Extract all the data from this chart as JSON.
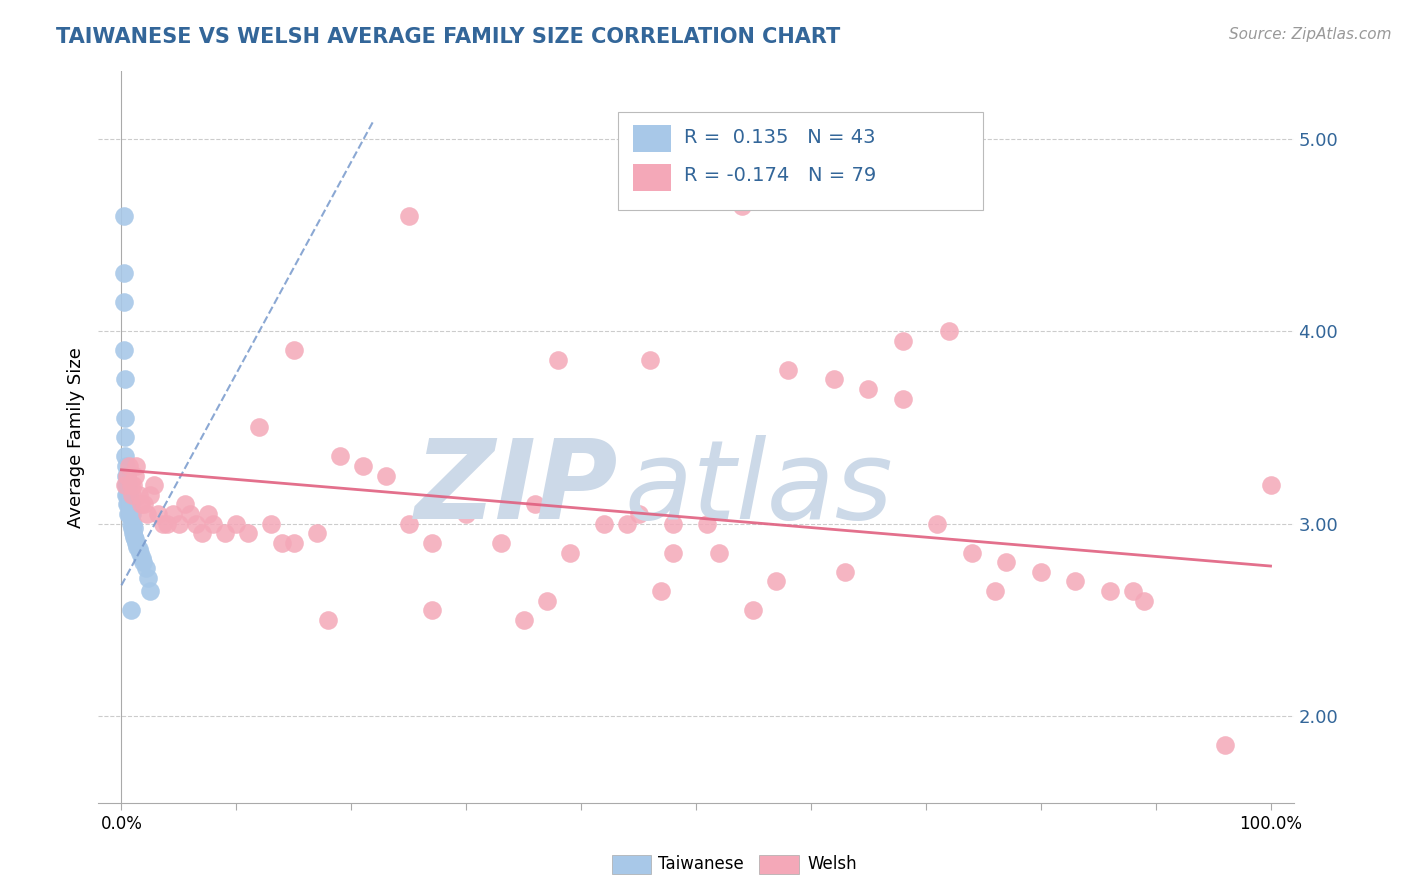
{
  "title": "TAIWANESE VS WELSH AVERAGE FAMILY SIZE CORRELATION CHART",
  "source": "Source: ZipAtlas.com",
  "ylabel": "Average Family Size",
  "yticks": [
    2.0,
    3.0,
    4.0,
    5.0
  ],
  "ylim": [
    1.55,
    5.35
  ],
  "xlim": [
    -0.02,
    1.02
  ],
  "taiwanese_R": 0.135,
  "taiwanese_N": 43,
  "welsh_R": -0.174,
  "welsh_N": 79,
  "taiwanese_color": "#a8c8e8",
  "welsh_color": "#f4a8b8",
  "taiwanese_trend_color": "#7799cc",
  "welsh_trend_color": "#e06080",
  "background_color": "#ffffff",
  "grid_color": "#cccccc",
  "title_color": "#336699",
  "watermark_color": "#ccd9e8",
  "legend_box_color_taiwanese": "#a8c8e8",
  "legend_box_color_welsh": "#f4a8b8",
  "legend_text_color": "#336699",
  "tw_trend_x0": 0.0,
  "tw_trend_y0": 2.68,
  "tw_trend_x1": 0.22,
  "tw_trend_y1": 5.1,
  "wl_trend_x0": 0.0,
  "wl_trend_y0": 3.28,
  "wl_trend_x1": 1.0,
  "wl_trend_y1": 2.78,
  "taiwanese_x": [
    0.002,
    0.002,
    0.002,
    0.002,
    0.003,
    0.003,
    0.003,
    0.003,
    0.004,
    0.004,
    0.004,
    0.004,
    0.005,
    0.005,
    0.005,
    0.005,
    0.006,
    0.006,
    0.006,
    0.006,
    0.007,
    0.007,
    0.007,
    0.008,
    0.008,
    0.008,
    0.009,
    0.009,
    0.01,
    0.01,
    0.011,
    0.011,
    0.012,
    0.013,
    0.014,
    0.015,
    0.016,
    0.018,
    0.019,
    0.021,
    0.023,
    0.025,
    0.008
  ],
  "taiwanese_y": [
    4.6,
    4.3,
    4.15,
    3.9,
    3.75,
    3.55,
    3.45,
    3.35,
    3.3,
    3.25,
    3.2,
    3.15,
    3.25,
    3.2,
    3.15,
    3.1,
    3.2,
    3.15,
    3.1,
    3.05,
    3.15,
    3.1,
    3.05,
    3.1,
    3.05,
    3.0,
    3.05,
    2.98,
    3.0,
    2.95,
    2.98,
    2.93,
    2.92,
    2.9,
    2.88,
    2.87,
    2.85,
    2.82,
    2.8,
    2.77,
    2.72,
    2.65,
    2.55
  ],
  "welsh_x": [
    0.003,
    0.005,
    0.007,
    0.008,
    0.009,
    0.01,
    0.012,
    0.013,
    0.015,
    0.017,
    0.02,
    0.022,
    0.025,
    0.028,
    0.032,
    0.036,
    0.04,
    0.045,
    0.05,
    0.055,
    0.06,
    0.065,
    0.07,
    0.075,
    0.08,
    0.09,
    0.1,
    0.11,
    0.12,
    0.13,
    0.14,
    0.15,
    0.17,
    0.19,
    0.21,
    0.23,
    0.25,
    0.27,
    0.3,
    0.33,
    0.36,
    0.39,
    0.42,
    0.45,
    0.48,
    0.51,
    0.54,
    0.46,
    0.58,
    0.62,
    0.65,
    0.68,
    0.71,
    0.74,
    0.77,
    0.8,
    0.83,
    0.86,
    0.89,
    0.76,
    0.55,
    0.35,
    0.25,
    0.15,
    0.38,
    0.44,
    0.52,
    0.48,
    0.72,
    0.68,
    0.63,
    0.57,
    0.47,
    0.37,
    0.27,
    0.18,
    0.88,
    0.96,
    1.0
  ],
  "welsh_y": [
    3.2,
    3.25,
    3.3,
    3.2,
    3.15,
    3.2,
    3.25,
    3.3,
    3.15,
    3.1,
    3.1,
    3.05,
    3.15,
    3.2,
    3.05,
    3.0,
    3.0,
    3.05,
    3.0,
    3.1,
    3.05,
    3.0,
    2.95,
    3.05,
    3.0,
    2.95,
    3.0,
    2.95,
    3.5,
    3.0,
    2.9,
    2.9,
    2.95,
    3.35,
    3.3,
    3.25,
    3.0,
    2.9,
    3.05,
    2.9,
    3.1,
    2.85,
    3.0,
    3.05,
    2.85,
    3.0,
    4.65,
    3.85,
    3.8,
    3.75,
    3.7,
    3.65,
    3.0,
    2.85,
    2.8,
    2.75,
    2.7,
    2.65,
    2.6,
    2.65,
    2.55,
    2.5,
    4.6,
    3.9,
    3.85,
    3.0,
    2.85,
    3.0,
    4.0,
    3.95,
    2.75,
    2.7,
    2.65,
    2.6,
    2.55,
    2.5,
    2.65,
    1.85,
    3.2
  ]
}
